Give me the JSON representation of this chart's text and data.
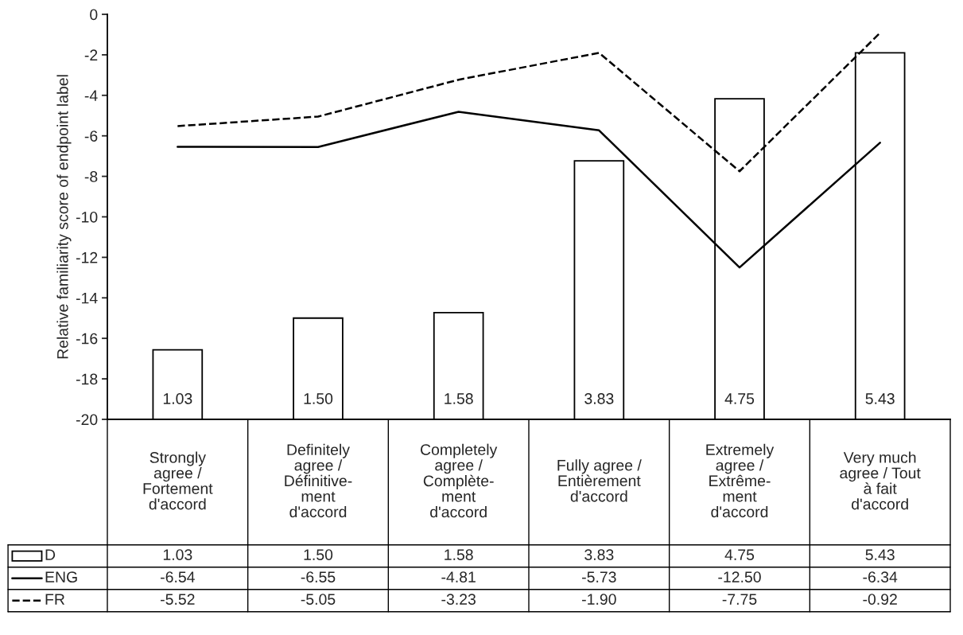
{
  "chart_data": {
    "type": "line",
    "ylabel": "Relative familiarity score of endpoint label",
    "categories": [
      "Strongly\nagree /\nFortement\nd'accord",
      "Definitely\nagree /\nDéfinitive-\nment\nd'accord",
      "Completely\nagree /\nComplète-\nment\nd'accord",
      "Fully agree /\nEntièrement\nd'accord",
      "Extremely\nagree /\nExtrême-\nment\nd'accord",
      "Very much\nagree / Tout\nà fait\nd'accord"
    ],
    "series": [
      {
        "name": "D",
        "type": "bar",
        "axis": "y2",
        "color": "#ffffff",
        "values": [
          1.03,
          1.5,
          1.58,
          3.83,
          4.75,
          5.43
        ],
        "value_labels": [
          "1.03",
          "1.50",
          "1.58",
          "3.83",
          "4.75",
          "5.43"
        ]
      },
      {
        "name": "ENG",
        "color": "#000000",
        "line_style": "solid",
        "values": [
          -6.54,
          -6.55,
          -4.81,
          -5.73,
          -12.5,
          -6.34
        ],
        "value_labels": [
          "-6.54",
          "-6.55",
          "-4.81",
          "-5.73",
          "-12.50",
          "-6.34"
        ]
      },
      {
        "name": "FR",
        "color": "#000000",
        "line_style": "dashed",
        "values": [
          -5.52,
          -5.05,
          -3.23,
          -1.9,
          -7.75,
          -0.92
        ],
        "value_labels": [
          "-5.52",
          "-5.05",
          "-3.23",
          "-1.90",
          "-7.75",
          "-0.92"
        ]
      }
    ],
    "ylim": [
      -20,
      0
    ],
    "yticks": [
      -20,
      -18,
      -16,
      -14,
      -12,
      -10,
      -8,
      -6,
      -4,
      -2,
      0
    ],
    "y2lim": [
      0,
      6
    ],
    "legend": "bottom",
    "grid": false
  }
}
